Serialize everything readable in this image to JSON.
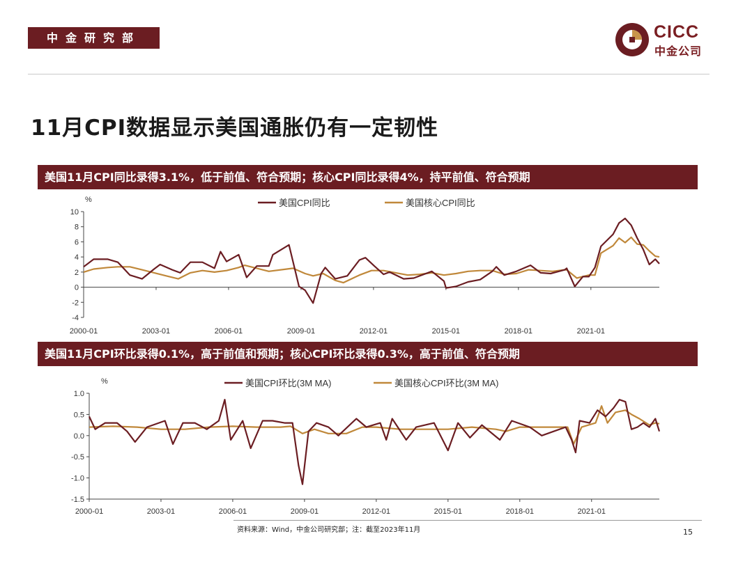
{
  "header": {
    "dept": "中金研究部",
    "logo_en": "CICC",
    "logo_cn": "中金公司",
    "title": "11月CPI数据显示美国通胀仍有一定韧性"
  },
  "colors": {
    "brand": "#6b1d22",
    "series_cpi": "#6b1d22",
    "series_core": "#c0883a"
  },
  "charts": [
    {
      "banner": "美国11月CPI同比录得3.1%，低于前值、符合预期；核心CPI同比录得4%，持平前值、符合预期",
      "unit": "%"
    },
    {
      "banner": "美国11月CPI环比录得0.1%，高于前值和预期；核心CPI环比录得0.3%，高于前值、符合预期",
      "unit": "%"
    }
  ],
  "chart_data": [
    {
      "type": "line",
      "title": "",
      "ylabel": "%",
      "ylim": [
        -4,
        10
      ],
      "yticks": [
        10,
        8,
        6,
        4,
        2,
        0,
        -2,
        -4
      ],
      "xlim": [
        "2000-01",
        "2023-11"
      ],
      "xticks": [
        "2000-01",
        "2003-01",
        "2006-01",
        "2009-01",
        "2012-01",
        "2015-01",
        "2018-01",
        "2021-01"
      ],
      "legend_position": "top",
      "series": [
        {
          "name": "美国CPI同比",
          "points": [
            [
              "2000-01",
              2.7
            ],
            [
              "2000-06",
              3.7
            ],
            [
              "2001-01",
              3.7
            ],
            [
              "2001-06",
              3.3
            ],
            [
              "2001-12",
              1.6
            ],
            [
              "2002-06",
              1.1
            ],
            [
              "2002-12",
              2.4
            ],
            [
              "2003-03",
              3.0
            ],
            [
              "2003-09",
              2.3
            ],
            [
              "2004-01",
              1.9
            ],
            [
              "2004-06",
              3.3
            ],
            [
              "2004-12",
              3.3
            ],
            [
              "2005-06",
              2.5
            ],
            [
              "2005-09",
              4.7
            ],
            [
              "2005-12",
              3.4
            ],
            [
              "2006-06",
              4.3
            ],
            [
              "2006-10",
              1.3
            ],
            [
              "2007-03",
              2.8
            ],
            [
              "2007-09",
              2.8
            ],
            [
              "2007-11",
              4.3
            ],
            [
              "2008-07",
              5.6
            ],
            [
              "2008-12",
              0.1
            ],
            [
              "2009-03",
              -0.4
            ],
            [
              "2009-07",
              -2.1
            ],
            [
              "2009-11",
              1.8
            ],
            [
              "2010-01",
              2.6
            ],
            [
              "2010-06",
              1.1
            ],
            [
              "2010-12",
              1.5
            ],
            [
              "2011-06",
              3.6
            ],
            [
              "2011-09",
              3.9
            ],
            [
              "2012-01",
              2.9
            ],
            [
              "2012-06",
              1.7
            ],
            [
              "2012-09",
              2.0
            ],
            [
              "2013-04",
              1.1
            ],
            [
              "2013-09",
              1.2
            ],
            [
              "2014-06",
              2.1
            ],
            [
              "2014-12",
              0.8
            ],
            [
              "2015-01",
              -0.1
            ],
            [
              "2015-06",
              0.1
            ],
            [
              "2015-12",
              0.7
            ],
            [
              "2016-06",
              1.0
            ],
            [
              "2016-12",
              2.1
            ],
            [
              "2017-02",
              2.7
            ],
            [
              "2017-06",
              1.6
            ],
            [
              "2017-12",
              2.1
            ],
            [
              "2018-07",
              2.9
            ],
            [
              "2018-12",
              1.9
            ],
            [
              "2019-05",
              1.8
            ],
            [
              "2019-12",
              2.3
            ],
            [
              "2020-01",
              2.5
            ],
            [
              "2020-05",
              0.1
            ],
            [
              "2020-09",
              1.4
            ],
            [
              "2020-12",
              1.4
            ],
            [
              "2021-03",
              2.6
            ],
            [
              "2021-06",
              5.4
            ],
            [
              "2021-12",
              7.0
            ],
            [
              "2022-03",
              8.5
            ],
            [
              "2022-06",
              9.1
            ],
            [
              "2022-09",
              8.2
            ],
            [
              "2022-12",
              6.5
            ],
            [
              "2023-03",
              5.0
            ],
            [
              "2023-06",
              3.0
            ],
            [
              "2023-09",
              3.7
            ],
            [
              "2023-11",
              3.1
            ]
          ]
        },
        {
          "name": "美国核心CPI同比",
          "points": [
            [
              "2000-01",
              2.0
            ],
            [
              "2000-06",
              2.4
            ],
            [
              "2001-01",
              2.6
            ],
            [
              "2001-06",
              2.7
            ],
            [
              "2001-12",
              2.7
            ],
            [
              "2002-06",
              2.3
            ],
            [
              "2002-12",
              1.9
            ],
            [
              "2003-06",
              1.5
            ],
            [
              "2003-12",
              1.1
            ],
            [
              "2004-06",
              1.9
            ],
            [
              "2004-12",
              2.2
            ],
            [
              "2005-06",
              2.0
            ],
            [
              "2005-12",
              2.2
            ],
            [
              "2006-06",
              2.6
            ],
            [
              "2006-09",
              2.9
            ],
            [
              "2007-03",
              2.5
            ],
            [
              "2007-09",
              2.1
            ],
            [
              "2008-06",
              2.4
            ],
            [
              "2008-09",
              2.5
            ],
            [
              "2009-03",
              1.8
            ],
            [
              "2009-07",
              1.5
            ],
            [
              "2009-12",
              1.8
            ],
            [
              "2010-06",
              0.9
            ],
            [
              "2010-10",
              0.6
            ],
            [
              "2011-06",
              1.6
            ],
            [
              "2011-12",
              2.2
            ],
            [
              "2012-06",
              2.2
            ],
            [
              "2012-12",
              1.9
            ],
            [
              "2013-06",
              1.6
            ],
            [
              "2013-12",
              1.7
            ],
            [
              "2014-06",
              1.9
            ],
            [
              "2014-12",
              1.6
            ],
            [
              "2015-06",
              1.8
            ],
            [
              "2015-12",
              2.1
            ],
            [
              "2016-06",
              2.2
            ],
            [
              "2016-12",
              2.2
            ],
            [
              "2017-06",
              1.7
            ],
            [
              "2017-12",
              1.8
            ],
            [
              "2018-06",
              2.3
            ],
            [
              "2018-12",
              2.2
            ],
            [
              "2019-06",
              2.1
            ],
            [
              "2019-12",
              2.3
            ],
            [
              "2020-01",
              2.3
            ],
            [
              "2020-06",
              1.2
            ],
            [
              "2020-12",
              1.6
            ],
            [
              "2021-03",
              1.6
            ],
            [
              "2021-06",
              4.5
            ],
            [
              "2021-12",
              5.5
            ],
            [
              "2022-03",
              6.5
            ],
            [
              "2022-06",
              5.9
            ],
            [
              "2022-09",
              6.6
            ],
            [
              "2022-12",
              5.7
            ],
            [
              "2023-03",
              5.6
            ],
            [
              "2023-06",
              4.8
            ],
            [
              "2023-09",
              4.1
            ],
            [
              "2023-11",
              4.0
            ]
          ]
        }
      ]
    },
    {
      "type": "line",
      "title": "",
      "ylabel": "%",
      "ylim": [
        -1.5,
        1.0
      ],
      "yticks": [
        "1.0",
        "0.5",
        "0.0",
        "-0.5",
        "-1.0",
        "-1.5"
      ],
      "xlim": [
        "2000-01",
        "2023-11"
      ],
      "xticks": [
        "2000-01",
        "2003-01",
        "2006-01",
        "2009-01",
        "2012-01",
        "2015-01",
        "2018-01",
        "2021-01"
      ],
      "legend_position": "top",
      "series": [
        {
          "name": "美国CPI环比(3M MA)",
          "points": [
            [
              "2000-01",
              0.45
            ],
            [
              "2000-04",
              0.15
            ],
            [
              "2000-09",
              0.3
            ],
            [
              "2001-03",
              0.3
            ],
            [
              "2001-08",
              0.1
            ],
            [
              "2001-12",
              -0.15
            ],
            [
              "2002-06",
              0.2
            ],
            [
              "2003-03",
              0.35
            ],
            [
              "2003-07",
              -0.2
            ],
            [
              "2003-12",
              0.3
            ],
            [
              "2004-06",
              0.3
            ],
            [
              "2004-12",
              0.15
            ],
            [
              "2005-06",
              0.35
            ],
            [
              "2005-09",
              0.85
            ],
            [
              "2005-12",
              -0.1
            ],
            [
              "2006-06",
              0.35
            ],
            [
              "2006-10",
              -0.3
            ],
            [
              "2007-04",
              0.35
            ],
            [
              "2007-09",
              0.35
            ],
            [
              "2008-03",
              0.3
            ],
            [
              "2008-07",
              0.3
            ],
            [
              "2008-10",
              -0.7
            ],
            [
              "2008-12",
              -1.15
            ],
            [
              "2009-03",
              0.1
            ],
            [
              "2009-07",
              0.3
            ],
            [
              "2010-01",
              0.2
            ],
            [
              "2010-06",
              0.0
            ],
            [
              "2011-03",
              0.4
            ],
            [
              "2011-08",
              0.2
            ],
            [
              "2012-03",
              0.3
            ],
            [
              "2012-06",
              -0.1
            ],
            [
              "2012-09",
              0.4
            ],
            [
              "2013-04",
              -0.1
            ],
            [
              "2013-09",
              0.2
            ],
            [
              "2014-06",
              0.3
            ],
            [
              "2015-01",
              -0.35
            ],
            [
              "2015-06",
              0.3
            ],
            [
              "2015-12",
              -0.05
            ],
            [
              "2016-06",
              0.25
            ],
            [
              "2017-03",
              -0.1
            ],
            [
              "2017-09",
              0.35
            ],
            [
              "2018-06",
              0.2
            ],
            [
              "2018-12",
              0.0
            ],
            [
              "2019-06",
              0.1
            ],
            [
              "2019-12",
              0.2
            ],
            [
              "2020-03",
              -0.1
            ],
            [
              "2020-05",
              -0.4
            ],
            [
              "2020-07",
              0.35
            ],
            [
              "2020-12",
              0.3
            ],
            [
              "2021-04",
              0.6
            ],
            [
              "2021-08",
              0.45
            ],
            [
              "2021-12",
              0.65
            ],
            [
              "2022-03",
              0.85
            ],
            [
              "2022-06",
              0.8
            ],
            [
              "2022-09",
              0.15
            ],
            [
              "2022-12",
              0.2
            ],
            [
              "2023-03",
              0.3
            ],
            [
              "2023-06",
              0.2
            ],
            [
              "2023-09",
              0.4
            ],
            [
              "2023-11",
              0.1
            ]
          ]
        },
        {
          "name": "美国核心CPI环比(3M MA)",
          "points": [
            [
              "2000-01",
              0.2
            ],
            [
              "2001-01",
              0.22
            ],
            [
              "2002-01",
              0.2
            ],
            [
              "2003-01",
              0.15
            ],
            [
              "2004-01",
              0.15
            ],
            [
              "2005-01",
              0.2
            ],
            [
              "2006-01",
              0.22
            ],
            [
              "2007-01",
              0.2
            ],
            [
              "2008-01",
              0.2
            ],
            [
              "2008-06",
              0.22
            ],
            [
              "2008-12",
              0.05
            ],
            [
              "2009-06",
              0.15
            ],
            [
              "2010-01",
              0.05
            ],
            [
              "2010-10",
              0.05
            ],
            [
              "2011-06",
              0.2
            ],
            [
              "2012-01",
              0.2
            ],
            [
              "2013-01",
              0.15
            ],
            [
              "2014-01",
              0.15
            ],
            [
              "2015-01",
              0.15
            ],
            [
              "2016-01",
              0.2
            ],
            [
              "2017-01",
              0.15
            ],
            [
              "2017-06",
              0.1
            ],
            [
              "2018-01",
              0.2
            ],
            [
              "2019-01",
              0.2
            ],
            [
              "2020-01",
              0.2
            ],
            [
              "2020-04",
              -0.2
            ],
            [
              "2020-08",
              0.2
            ],
            [
              "2021-03",
              0.3
            ],
            [
              "2021-06",
              0.7
            ],
            [
              "2021-09",
              0.3
            ],
            [
              "2022-01",
              0.55
            ],
            [
              "2022-06",
              0.6
            ],
            [
              "2022-09",
              0.5
            ],
            [
              "2023-01",
              0.4
            ],
            [
              "2023-06",
              0.25
            ],
            [
              "2023-09",
              0.3
            ],
            [
              "2023-11",
              0.28
            ]
          ]
        }
      ]
    }
  ],
  "footer": {
    "source": "资料来源：Wind，中金公司研究部；注：截至2023年11月",
    "page_number": "15"
  }
}
